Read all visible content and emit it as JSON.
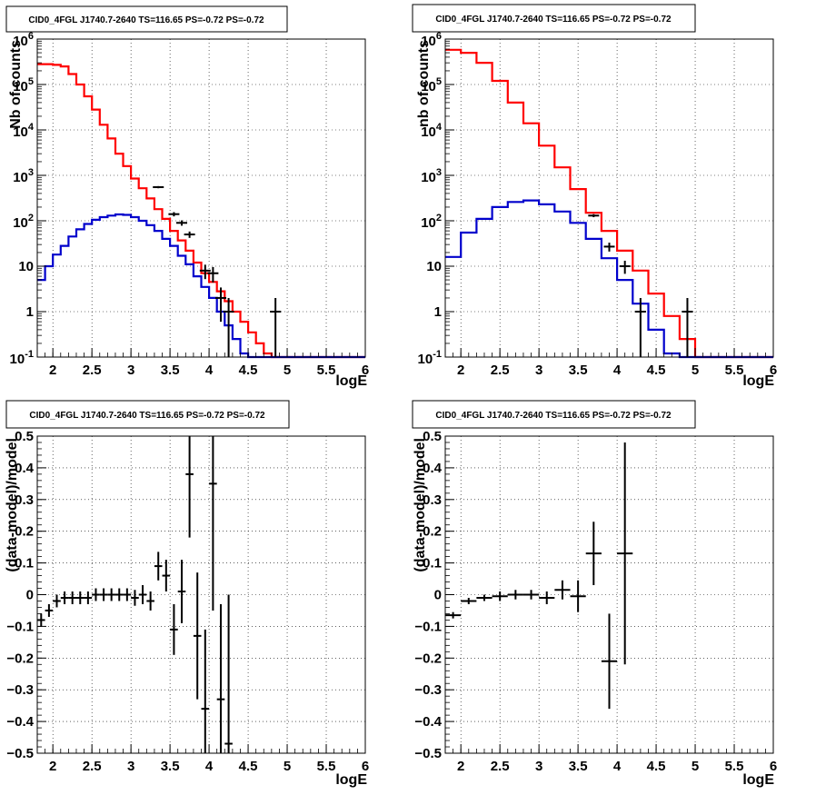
{
  "chart_data": [
    {
      "type": "histogram",
      "title": "CID0_4FGL J1740.7-2640 TS=116.65 PS=-0.72 PS=-0.72",
      "xlabel": "logE",
      "ylabel": "Nb of counts",
      "xlim": [
        1.8,
        6.0
      ],
      "ylim": [
        0.1,
        1000000
      ],
      "yscale": "log",
      "xticks": [
        "2",
        "2.5",
        "3",
        "3.5",
        "4",
        "4.5",
        "5",
        "5.5",
        "6"
      ],
      "yticks": [
        "10^-1",
        "1",
        "10",
        "10^2",
        "10^3",
        "10^4",
        "10^5",
        "10^6"
      ],
      "grid": true,
      "bin_edges": [
        1.8,
        1.9,
        2.0,
        2.1,
        2.2,
        2.3,
        2.4,
        2.5,
        2.6,
        2.7,
        2.8,
        2.9,
        3.0,
        3.1,
        3.2,
        3.3,
        3.4,
        3.5,
        3.6,
        3.7,
        3.8,
        3.9,
        4.0,
        4.1,
        4.2,
        4.3,
        4.4,
        4.5,
        4.6,
        4.7,
        4.8,
        4.9,
        5.0,
        5.1,
        5.2,
        5.3,
        5.4,
        5.5,
        5.6,
        5.7,
        5.8,
        5.9,
        6.0
      ],
      "series": [
        {
          "role": "total-model",
          "color": "#ff0000",
          "values": [
            280000,
            280000,
            270000,
            250000,
            170000,
            100000,
            55000,
            28000,
            13000,
            6500,
            3000,
            1600,
            850,
            520,
            310,
            180,
            110,
            60,
            37,
            22,
            12,
            7,
            4.5,
            2.8,
            1.7,
            1.0,
            0.6,
            0.35,
            0.2,
            0.12,
            0.1,
            0.1,
            0.1,
            0.1,
            0.1,
            0.1,
            0.1,
            0.1,
            0.1,
            0.1,
            0.1,
            0.1
          ]
        },
        {
          "role": "source-model",
          "color": "#0000cc",
          "values": [
            5,
            10,
            18,
            28,
            45,
            65,
            85,
            105,
            120,
            130,
            138,
            135,
            120,
            100,
            80,
            60,
            40,
            28,
            17,
            11,
            6,
            3.5,
            2.0,
            1.0,
            0.5,
            0.25,
            0.12,
            0.1,
            0.1,
            0.1,
            0.1,
            0.1,
            0.1,
            0.1,
            0.1,
            0.1,
            0.1,
            0.1,
            0.1,
            0.1,
            0.1,
            0.1
          ]
        }
      ],
      "data_points": [
        {
          "x": 3.35,
          "y": 550,
          "ylo": 520,
          "yhi": 580
        },
        {
          "x": 3.55,
          "y": 140,
          "ylo": 125,
          "yhi": 155
        },
        {
          "x": 3.65,
          "y": 90,
          "ylo": 78,
          "yhi": 102
        },
        {
          "x": 3.75,
          "y": 50,
          "ylo": 42,
          "yhi": 58
        },
        {
          "x": 3.95,
          "y": 8,
          "ylo": 5.2,
          "yhi": 10.8
        },
        {
          "x": 4.05,
          "y": 7,
          "ylo": 4.4,
          "yhi": 9.6
        },
        {
          "x": 4.15,
          "y": 2,
          "ylo": 0.6,
          "yhi": 3.4
        },
        {
          "x": 4.25,
          "y": 1,
          "ylo": 0.1,
          "yhi": 2.0
        },
        {
          "x": 4.85,
          "y": 1,
          "ylo": 0.1,
          "yhi": 2.0
        }
      ]
    },
    {
      "type": "histogram",
      "title": "CID0_4FGL J1740.7-2640 TS=116.65 PS=-0.72 PS=-0.72",
      "xlabel": "logE",
      "ylabel": "nb of counts",
      "xlim": [
        1.8,
        6.0
      ],
      "ylim": [
        0.1,
        1000000
      ],
      "yscale": "log",
      "xticks": [
        "2",
        "2.5",
        "3",
        "3.5",
        "4",
        "4.5",
        "5",
        "5.5",
        "6"
      ],
      "yticks": [
        "10^-1",
        "1",
        "10",
        "10^2",
        "10^3",
        "10^4",
        "10^5",
        "10^6"
      ],
      "grid": true,
      "bin_edges": [
        1.8,
        2.0,
        2.2,
        2.4,
        2.6,
        2.8,
        3.0,
        3.2,
        3.4,
        3.6,
        3.8,
        4.0,
        4.2,
        4.4,
        4.6,
        4.8,
        5.0,
        5.2,
        5.4,
        5.6,
        5.8,
        6.0
      ],
      "series": [
        {
          "role": "total-model",
          "color": "#ff0000",
          "values": [
            580000,
            500000,
            300000,
            120000,
            40000,
            14000,
            4500,
            1500,
            500,
            150,
            60,
            22,
            8,
            2.5,
            0.8,
            0.25,
            0.1,
            0.1,
            0.1,
            0.1,
            0.1
          ]
        },
        {
          "role": "source-model",
          "color": "#0000cc",
          "values": [
            16,
            55,
            110,
            200,
            260,
            280,
            230,
            160,
            90,
            40,
            15,
            5,
            1.5,
            0.4,
            0.12,
            0.1,
            0.1,
            0.1,
            0.1,
            0.1,
            0.1
          ]
        }
      ],
      "data_points": [
        {
          "x": 3.7,
          "y": 130,
          "ylo": 120,
          "yhi": 140
        },
        {
          "x": 3.9,
          "y": 27,
          "ylo": 21,
          "yhi": 33
        },
        {
          "x": 4.1,
          "y": 10,
          "ylo": 6.8,
          "yhi": 13.2
        },
        {
          "x": 4.3,
          "y": 1,
          "ylo": 0.1,
          "yhi": 2.0
        },
        {
          "x": 4.9,
          "y": 1,
          "ylo": 0.1,
          "yhi": 2.0
        }
      ]
    },
    {
      "type": "scatter",
      "title": "CID0_4FGL J1740.7-2640 TS=116.65 PS=-0.72 PS=-0.72",
      "xlabel": "logE",
      "ylabel": "(data-model)/model",
      "xlim": [
        1.8,
        6.0
      ],
      "ylim": [
        -0.5,
        0.5
      ],
      "yscale": "linear",
      "xticks": [
        "2",
        "2.5",
        "3",
        "3.5",
        "4",
        "4.5",
        "5",
        "5.5",
        "6"
      ],
      "yticks": [
        "-0.5",
        "-0.4",
        "-0.3",
        "-0.2",
        "-0.1",
        "0",
        "0.1",
        "0.2",
        "0.3",
        "0.4",
        "0.5"
      ],
      "grid": true,
      "xerr": 0.05,
      "points": [
        {
          "x": 1.85,
          "y": -0.08,
          "err": 0.02
        },
        {
          "x": 1.95,
          "y": -0.05,
          "err": 0.02
        },
        {
          "x": 2.05,
          "y": -0.02,
          "err": 0.02
        },
        {
          "x": 2.15,
          "y": -0.01,
          "err": 0.02
        },
        {
          "x": 2.25,
          "y": -0.01,
          "err": 0.02
        },
        {
          "x": 2.35,
          "y": -0.01,
          "err": 0.02
        },
        {
          "x": 2.45,
          "y": -0.01,
          "err": 0.02
        },
        {
          "x": 2.55,
          "y": 0.0,
          "err": 0.02
        },
        {
          "x": 2.65,
          "y": 0.0,
          "err": 0.02
        },
        {
          "x": 2.75,
          "y": 0.0,
          "err": 0.02
        },
        {
          "x": 2.85,
          "y": 0.0,
          "err": 0.02
        },
        {
          "x": 2.95,
          "y": 0.0,
          "err": 0.02
        },
        {
          "x": 3.05,
          "y": -0.01,
          "err": 0.025
        },
        {
          "x": 3.15,
          "y": 0.0,
          "err": 0.03
        },
        {
          "x": 3.25,
          "y": -0.02,
          "err": 0.03
        },
        {
          "x": 3.35,
          "y": 0.09,
          "err": 0.045
        },
        {
          "x": 3.45,
          "y": 0.06,
          "err": 0.05
        },
        {
          "x": 3.55,
          "y": -0.11,
          "err": 0.08
        },
        {
          "x": 3.65,
          "y": 0.01,
          "err": 0.1
        },
        {
          "x": 3.75,
          "y": 0.38,
          "err": 0.2
        },
        {
          "x": 3.85,
          "y": -0.13,
          "err": 0.2
        },
        {
          "x": 3.95,
          "y": -0.36,
          "err": 0.25
        },
        {
          "x": 4.05,
          "y": 0.35,
          "err": 0.4
        },
        {
          "x": 4.15,
          "y": -0.33,
          "err": 0.3
        },
        {
          "x": 4.25,
          "y": -0.47,
          "err": 0.47
        }
      ]
    },
    {
      "type": "scatter",
      "title": "CID0_4FGL J1740.7-2640 TS=116.65 PS=-0.72 PS=-0.72",
      "xlabel": "logE",
      "ylabel": "(data-model)/model",
      "xlim": [
        1.8,
        6.0
      ],
      "ylim": [
        -0.5,
        0.5
      ],
      "yscale": "linear",
      "xticks": [
        "2",
        "2.5",
        "3",
        "3.5",
        "4",
        "4.5",
        "5",
        "5.5",
        "6"
      ],
      "yticks": [
        "-0.5",
        "-0.4",
        "-0.3",
        "-0.2",
        "-0.1",
        "0",
        "0.1",
        "0.2",
        "0.3",
        "0.4",
        "0.5"
      ],
      "grid": true,
      "xerr": 0.1,
      "points": [
        {
          "x": 1.9,
          "y": -0.065,
          "err": 0.01
        },
        {
          "x": 2.1,
          "y": -0.02,
          "err": 0.01
        },
        {
          "x": 2.3,
          "y": -0.01,
          "err": 0.01
        },
        {
          "x": 2.5,
          "y": -0.005,
          "err": 0.015
        },
        {
          "x": 2.7,
          "y": 0.0,
          "err": 0.015
        },
        {
          "x": 2.9,
          "y": 0.0,
          "err": 0.015
        },
        {
          "x": 3.1,
          "y": -0.01,
          "err": 0.02
        },
        {
          "x": 3.3,
          "y": 0.015,
          "err": 0.03
        },
        {
          "x": 3.5,
          "y": -0.005,
          "err": 0.05
        },
        {
          "x": 3.7,
          "y": 0.13,
          "err": 0.1
        },
        {
          "x": 3.9,
          "y": -0.21,
          "err": 0.15
        },
        {
          "x": 4.1,
          "y": 0.13,
          "err": 0.35
        }
      ]
    }
  ]
}
